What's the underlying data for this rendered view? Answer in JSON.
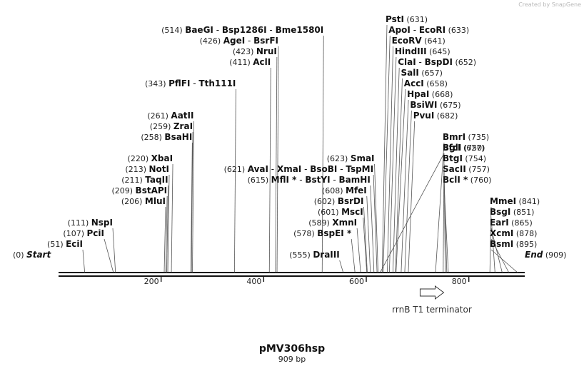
{
  "credit": "Created by SnapGene",
  "title": "pMV306hsp",
  "subtitle": "909 bp",
  "sequence_length": 909,
  "ruler_ticks": [
    200,
    400,
    600,
    800
  ],
  "features": [
    {
      "name": "rrnB T1 terminator",
      "start": 705,
      "end": 751,
      "direction": "forward"
    }
  ],
  "site_rows": [
    {
      "row": 0,
      "sites": [
        {
          "name": "Start",
          "pos": 0,
          "style": "terminal"
        }
      ]
    },
    {
      "row": 1,
      "sites": [
        {
          "name": "EciI",
          "pos": 51
        }
      ]
    },
    {
      "row": 2,
      "sites": [
        {
          "name": "PciI",
          "pos": 107
        }
      ]
    },
    {
      "row": 3,
      "sites": [
        {
          "name": "NspI",
          "pos": 111
        }
      ]
    },
    {
      "row": 5,
      "sites": [
        {
          "name": "MluI",
          "pos": 206
        }
      ]
    },
    {
      "row": 6,
      "sites": [
        {
          "name": "BstAPI",
          "pos": 209
        }
      ]
    },
    {
      "row": 7,
      "sites": [
        {
          "name": "TaqII",
          "pos": 211
        }
      ]
    },
    {
      "row": 8,
      "sites": [
        {
          "name": "NotI",
          "pos": 213
        }
      ]
    },
    {
      "row": 9,
      "sites": [
        {
          "name": "XbaI",
          "pos": 220
        }
      ]
    },
    {
      "row": 11,
      "sites": [
        {
          "name": "BsaHI",
          "pos": 258
        }
      ]
    },
    {
      "row": 12,
      "sites": [
        {
          "name": "ZraI",
          "pos": 259
        }
      ]
    },
    {
      "row": 13,
      "sites": [
        {
          "name": "AatII",
          "pos": 261
        }
      ]
    },
    {
      "row": 16,
      "sites": [
        {
          "name": "PflFI",
          "pos": 343
        },
        {
          "name": "Tth111I",
          "pos": 343
        }
      ]
    },
    {
      "row": 18,
      "sites": [
        {
          "name": "AclI",
          "pos": 411
        }
      ]
    },
    {
      "row": 19,
      "sites": [
        {
          "name": "NruI",
          "pos": 423
        }
      ]
    },
    {
      "row": 20,
      "sites": [
        {
          "name": "AgeI",
          "pos": 426
        },
        {
          "name": "BsrFI",
          "pos": 426
        }
      ]
    },
    {
      "row": 21,
      "sites": [
        {
          "name": "BaeGI",
          "pos": 514
        },
        {
          "name": "Bsp1286I",
          "pos": 514
        },
        {
          "name": "Bme1580I",
          "pos": 514
        }
      ]
    },
    {
      "row": 0,
      "sites": [
        {
          "name": "DraIII",
          "pos": 555
        }
      ]
    },
    {
      "row": 2,
      "sites": [
        {
          "name": "BspEI",
          "pos": 578,
          "star": true
        }
      ]
    },
    {
      "row": 3,
      "sites": [
        {
          "name": "XmnI",
          "pos": 589
        }
      ]
    },
    {
      "row": 4,
      "sites": [
        {
          "name": "MscI",
          "pos": 601
        }
      ]
    },
    {
      "row": 5,
      "sites": [
        {
          "name": "BsrDI",
          "pos": 602
        }
      ]
    },
    {
      "row": 6,
      "sites": [
        {
          "name": "MfeI",
          "pos": 608
        }
      ]
    },
    {
      "row": 7,
      "sites": [
        {
          "name": "MflI",
          "pos": 615,
          "star": true
        },
        {
          "name": "BstYI",
          "pos": 615
        },
        {
          "name": "BamHI",
          "pos": 615
        }
      ]
    },
    {
      "row": 8,
      "sites": [
        {
          "name": "AvaI",
          "pos": 621
        },
        {
          "name": "XmaI",
          "pos": 621
        },
        {
          "name": "BsoBI",
          "pos": 621
        },
        {
          "name": "TspMI",
          "pos": 621
        }
      ]
    },
    {
      "row": 9,
      "sites": [
        {
          "name": "SmaI",
          "pos": 623
        }
      ]
    },
    {
      "row": 10,
      "sites": [
        {
          "name": "SfcI",
          "pos": 627
        }
      ]
    },
    {
      "row": 22,
      "sites": [
        {
          "name": "PstI",
          "pos": 631
        }
      ]
    },
    {
      "row": 21,
      "sites": [
        {
          "name": "ApoI",
          "pos": 633
        },
        {
          "name": "EcoRI",
          "pos": 633
        }
      ]
    },
    {
      "row": 20,
      "sites": [
        {
          "name": "EcoRV",
          "pos": 641
        }
      ]
    },
    {
      "row": 19,
      "sites": [
        {
          "name": "HindIII",
          "pos": 645
        }
      ]
    },
    {
      "row": 18,
      "sites": [
        {
          "name": "ClaI",
          "pos": 652
        },
        {
          "name": "BspDI",
          "pos": 652
        }
      ]
    },
    {
      "row": 17,
      "sites": [
        {
          "name": "SalI",
          "pos": 657
        }
      ]
    },
    {
      "row": 16,
      "sites": [
        {
          "name": "AccI",
          "pos": 658
        }
      ]
    },
    {
      "row": 15,
      "sites": [
        {
          "name": "HpaI",
          "pos": 668
        }
      ]
    },
    {
      "row": 14,
      "sites": [
        {
          "name": "BsiWI",
          "pos": 675
        }
      ]
    },
    {
      "row": 13,
      "sites": [
        {
          "name": "PvuI",
          "pos": 682
        }
      ]
    },
    {
      "row": 11,
      "sites": [
        {
          "name": "BmrI",
          "pos": 735
        }
      ]
    },
    {
      "row": 10,
      "sites": [
        {
          "name": "BglI",
          "pos": 750
        }
      ]
    },
    {
      "row": 9,
      "sites": [
        {
          "name": "BtgI",
          "pos": 754
        }
      ]
    },
    {
      "row": 8,
      "sites": [
        {
          "name": "SacII",
          "pos": 757
        }
      ]
    },
    {
      "row": 7,
      "sites": [
        {
          "name": "BclI",
          "pos": 760,
          "star": true
        }
      ]
    },
    {
      "row": 5,
      "sites": [
        {
          "name": "MmeI",
          "pos": 841
        }
      ]
    },
    {
      "row": 4,
      "sites": [
        {
          "name": "BsgI",
          "pos": 851
        }
      ]
    },
    {
      "row": 3,
      "sites": [
        {
          "name": "EarI",
          "pos": 865
        }
      ]
    },
    {
      "row": 2,
      "sites": [
        {
          "name": "XcmI",
          "pos": 878
        }
      ]
    },
    {
      "row": 1,
      "sites": [
        {
          "name": "BsmI",
          "pos": 895
        }
      ]
    },
    {
      "row": 0,
      "sites": [
        {
          "name": "End",
          "pos": 909,
          "style": "terminal"
        }
      ]
    }
  ]
}
